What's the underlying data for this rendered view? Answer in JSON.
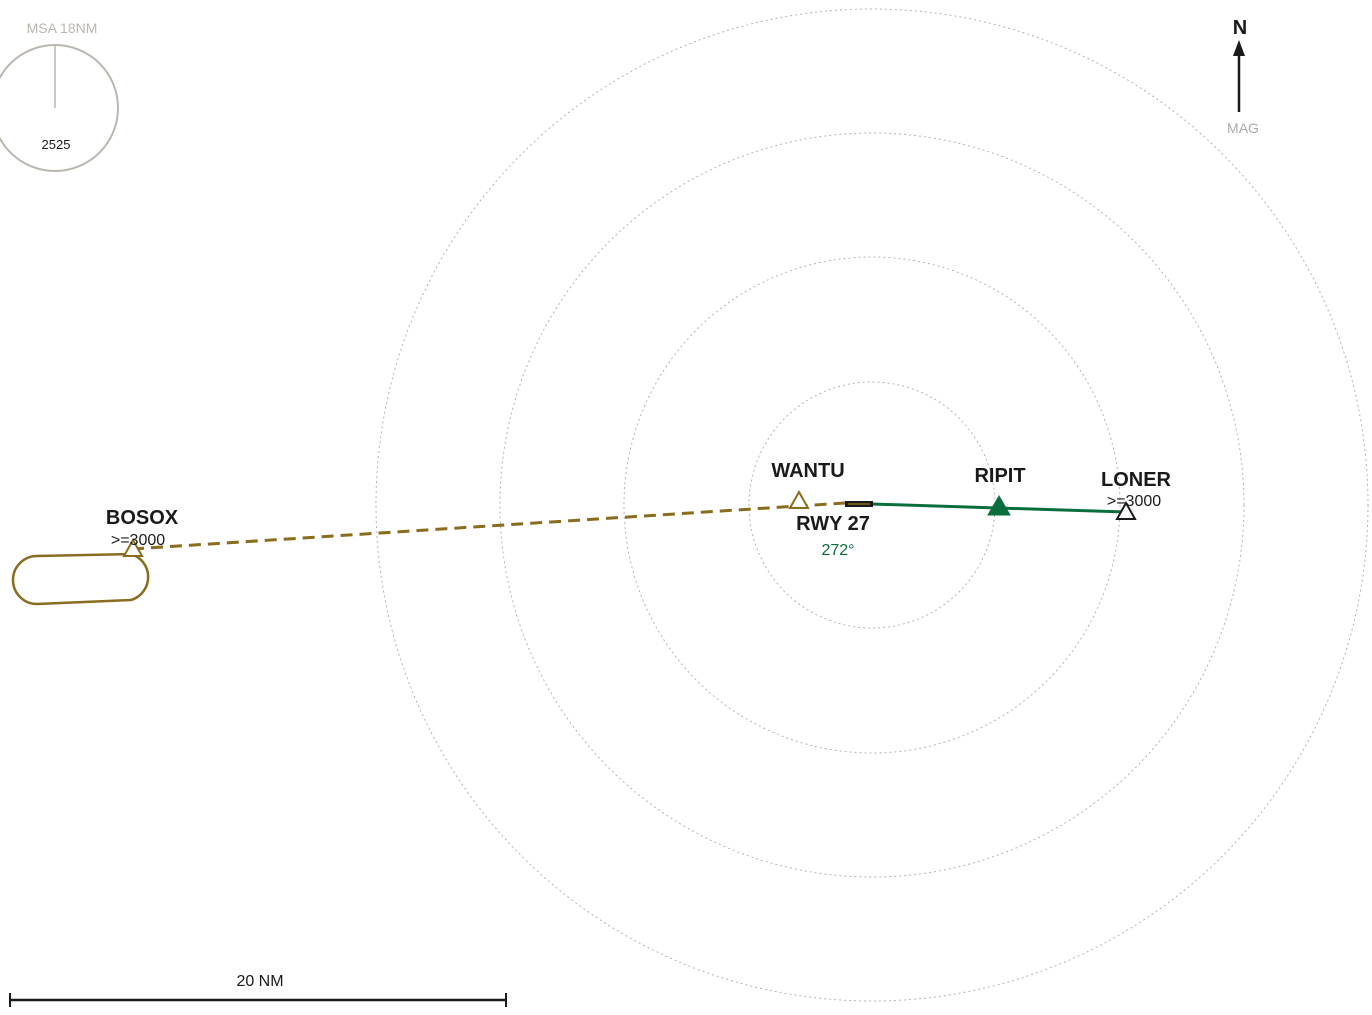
{
  "msa": {
    "title": "MSA 18NM",
    "altitude": "2525"
  },
  "north_arrow": {
    "label": "N",
    "reference": "MAG"
  },
  "waypoints": {
    "bosox": {
      "name": "BOSOX",
      "altitude": ">=3000"
    },
    "wantu": {
      "name": "WANTU"
    },
    "ripit": {
      "name": "RIPIT"
    },
    "loner": {
      "name": "LONER",
      "altitude": ">=3000"
    }
  },
  "runway": {
    "name": "RWY 27",
    "course": "272°"
  },
  "scale": {
    "label": "20 NM"
  },
  "colors": {
    "approach": "#0a6e3c",
    "missed_approach": "#8a6c1e",
    "range_ring": "#b3b3b3",
    "msa": "#bbb6ae",
    "text": "#1a1a1a"
  }
}
